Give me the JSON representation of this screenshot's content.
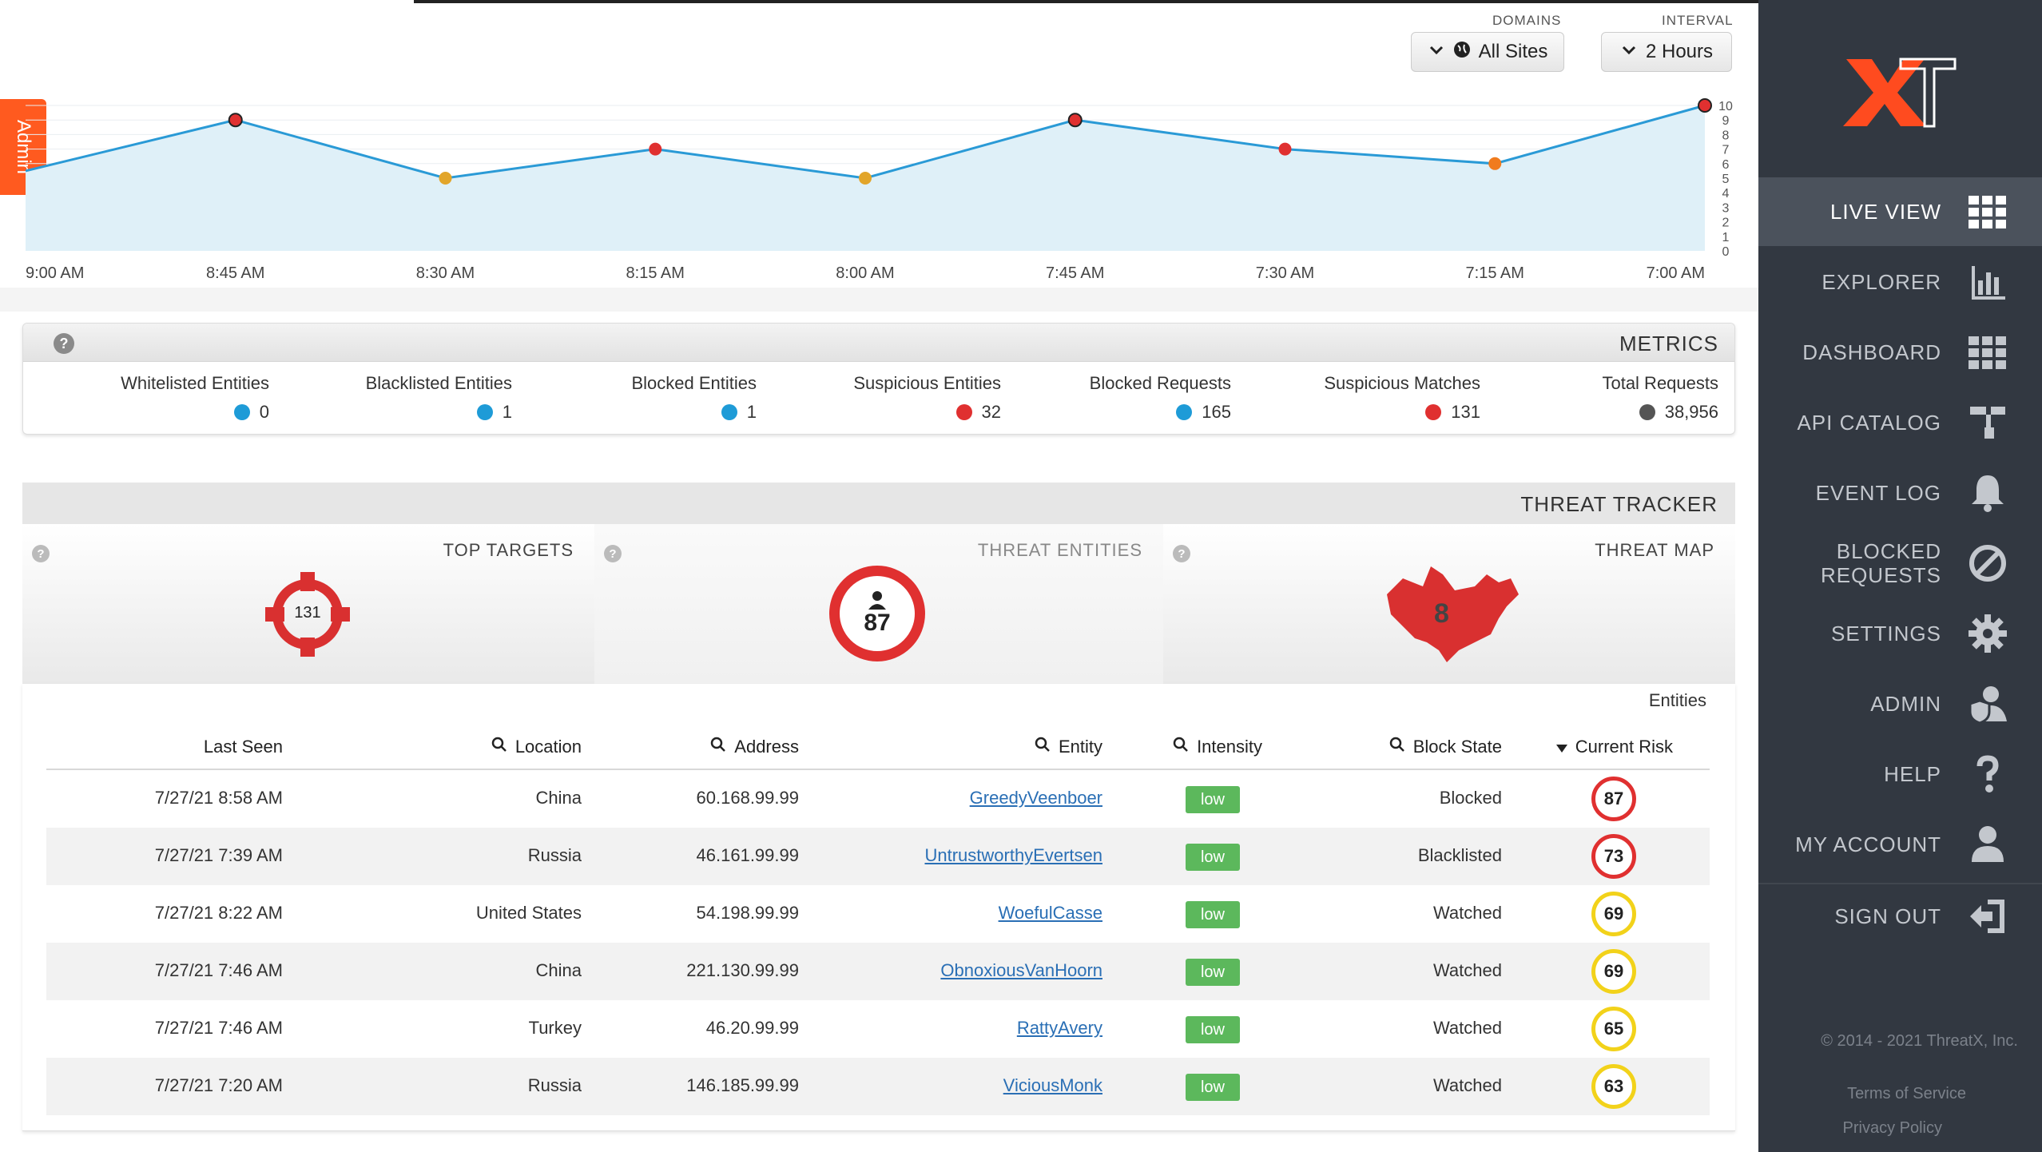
{
  "sidebar": {
    "items": [
      {
        "label": "LIVE VIEW",
        "icon": "grid-icon"
      },
      {
        "label": "EXPLORER",
        "icon": "bar-chart-icon"
      },
      {
        "label": "DASHBOARD",
        "icon": "dashboard-grid-icon"
      },
      {
        "label": "API CATALOG",
        "icon": "api-icon"
      },
      {
        "label": "EVENT LOG",
        "icon": "bell-icon"
      },
      {
        "label": "BLOCKED",
        "label2": "REQUESTS",
        "icon": "block-icon"
      },
      {
        "label": "SETTINGS",
        "icon": "gear-icon"
      },
      {
        "label": "ADMIN",
        "icon": "user-shield-icon"
      },
      {
        "label": "HELP",
        "icon": "question-icon"
      },
      {
        "label": "MY ACCOUNT",
        "icon": "user-icon"
      },
      {
        "label": "SIGN OUT",
        "icon": "sign-out-icon"
      }
    ],
    "copyright": "© 2014 - 2021 ThreatX, Inc.",
    "terms": "Terms of Service",
    "privacy": "Privacy Policy"
  },
  "admin_tab": "Admin",
  "controls": {
    "interval_label": "INTERVAL",
    "interval_value": "2 Hours",
    "domains_label": "DOMAINS",
    "domains_value": "All Sites"
  },
  "chart_data": {
    "type": "area",
    "x": [
      "7:00 AM",
      "7:15 AM",
      "7:30 AM",
      "7:45 AM",
      "8:00 AM",
      "8:15 AM",
      "8:30 AM",
      "8:45 AM",
      "9:00 AM"
    ],
    "y": [
      10,
      6,
      7,
      9,
      5,
      7,
      5,
      9,
      5.5
    ],
    "point_colors": [
      "#e03030",
      "#f07b1e",
      "#e03030",
      "#e03030",
      "#e2a52a",
      "#e03030",
      "#e2a52a",
      "#e03030",
      null
    ],
    "ylim": [
      0,
      10
    ],
    "yticks": [
      "0",
      "1",
      "2",
      "3",
      "4",
      "5",
      "6",
      "7",
      "8",
      "9",
      "10"
    ],
    "line_color": "#2a9ad6",
    "fill_color": "#dff0f8"
  },
  "metrics": {
    "title": "METRICS",
    "items": [
      {
        "label": "Total Requests",
        "value": "38,956",
        "color": "#555555"
      },
      {
        "label": "Suspicious Matches",
        "value": "131",
        "color": "#e03030"
      },
      {
        "label": "Blocked Requests",
        "value": "165",
        "color": "#1e9bd7"
      },
      {
        "label": "Suspicious Entities",
        "value": "32",
        "color": "#e03030"
      },
      {
        "label": "Blocked Entities",
        "value": "1",
        "color": "#1e9bd7"
      },
      {
        "label": "Blacklisted Entities",
        "value": "1",
        "color": "#1e9bd7"
      },
      {
        "label": "Whitelisted Entities",
        "value": "0",
        "color": "#1e9bd7"
      }
    ]
  },
  "tracker": {
    "title": "THREAT TRACKER",
    "map_title": "THREAT MAP",
    "map_value": "8",
    "entities_title": "THREAT ENTITIES",
    "entities_value": "87",
    "targets_title": "TOP TARGETS",
    "targets_value": "131"
  },
  "table": {
    "label": "Entities",
    "headers": {
      "risk": "Current Risk",
      "block_state": "Block State",
      "intensity": "Intensity",
      "entity": "Entity",
      "address": "Address",
      "location": "Location",
      "last_seen": "Last Seen"
    },
    "rows": [
      {
        "risk": "87",
        "risk_color": "#e03030",
        "block_state": "Blocked",
        "intensity": "low",
        "entity": "GreedyVeenboer",
        "address": "60.168.99.99",
        "location": "China",
        "last_seen": "7/27/21 8:58 AM"
      },
      {
        "risk": "73",
        "risk_color": "#e03030",
        "block_state": "Blacklisted",
        "intensity": "low",
        "entity": "UntrustworthyEvertsen",
        "address": "46.161.99.99",
        "location": "Russia",
        "last_seen": "7/27/21 7:39 AM"
      },
      {
        "risk": "69",
        "risk_color": "#f2d21a",
        "block_state": "Watched",
        "intensity": "low",
        "entity": "WoefulCasse",
        "address": "54.198.99.99",
        "location": "United States",
        "last_seen": "7/27/21 8:22 AM"
      },
      {
        "risk": "69",
        "risk_color": "#f2d21a",
        "block_state": "Watched",
        "intensity": "low",
        "entity": "ObnoxiousVanHoorn",
        "address": "221.130.99.99",
        "location": "China",
        "last_seen": "7/27/21 7:46 AM"
      },
      {
        "risk": "65",
        "risk_color": "#f2d21a",
        "block_state": "Watched",
        "intensity": "low",
        "entity": "RattyAvery",
        "address": "46.20.99.99",
        "location": "Turkey",
        "last_seen": "7/27/21 7:46 AM"
      },
      {
        "risk": "63",
        "risk_color": "#f2d21a",
        "block_state": "Watched",
        "intensity": "low",
        "entity": "ViciousMonk",
        "address": "146.185.99.99",
        "location": "Russia",
        "last_seen": "7/27/21 7:20 AM"
      }
    ]
  }
}
